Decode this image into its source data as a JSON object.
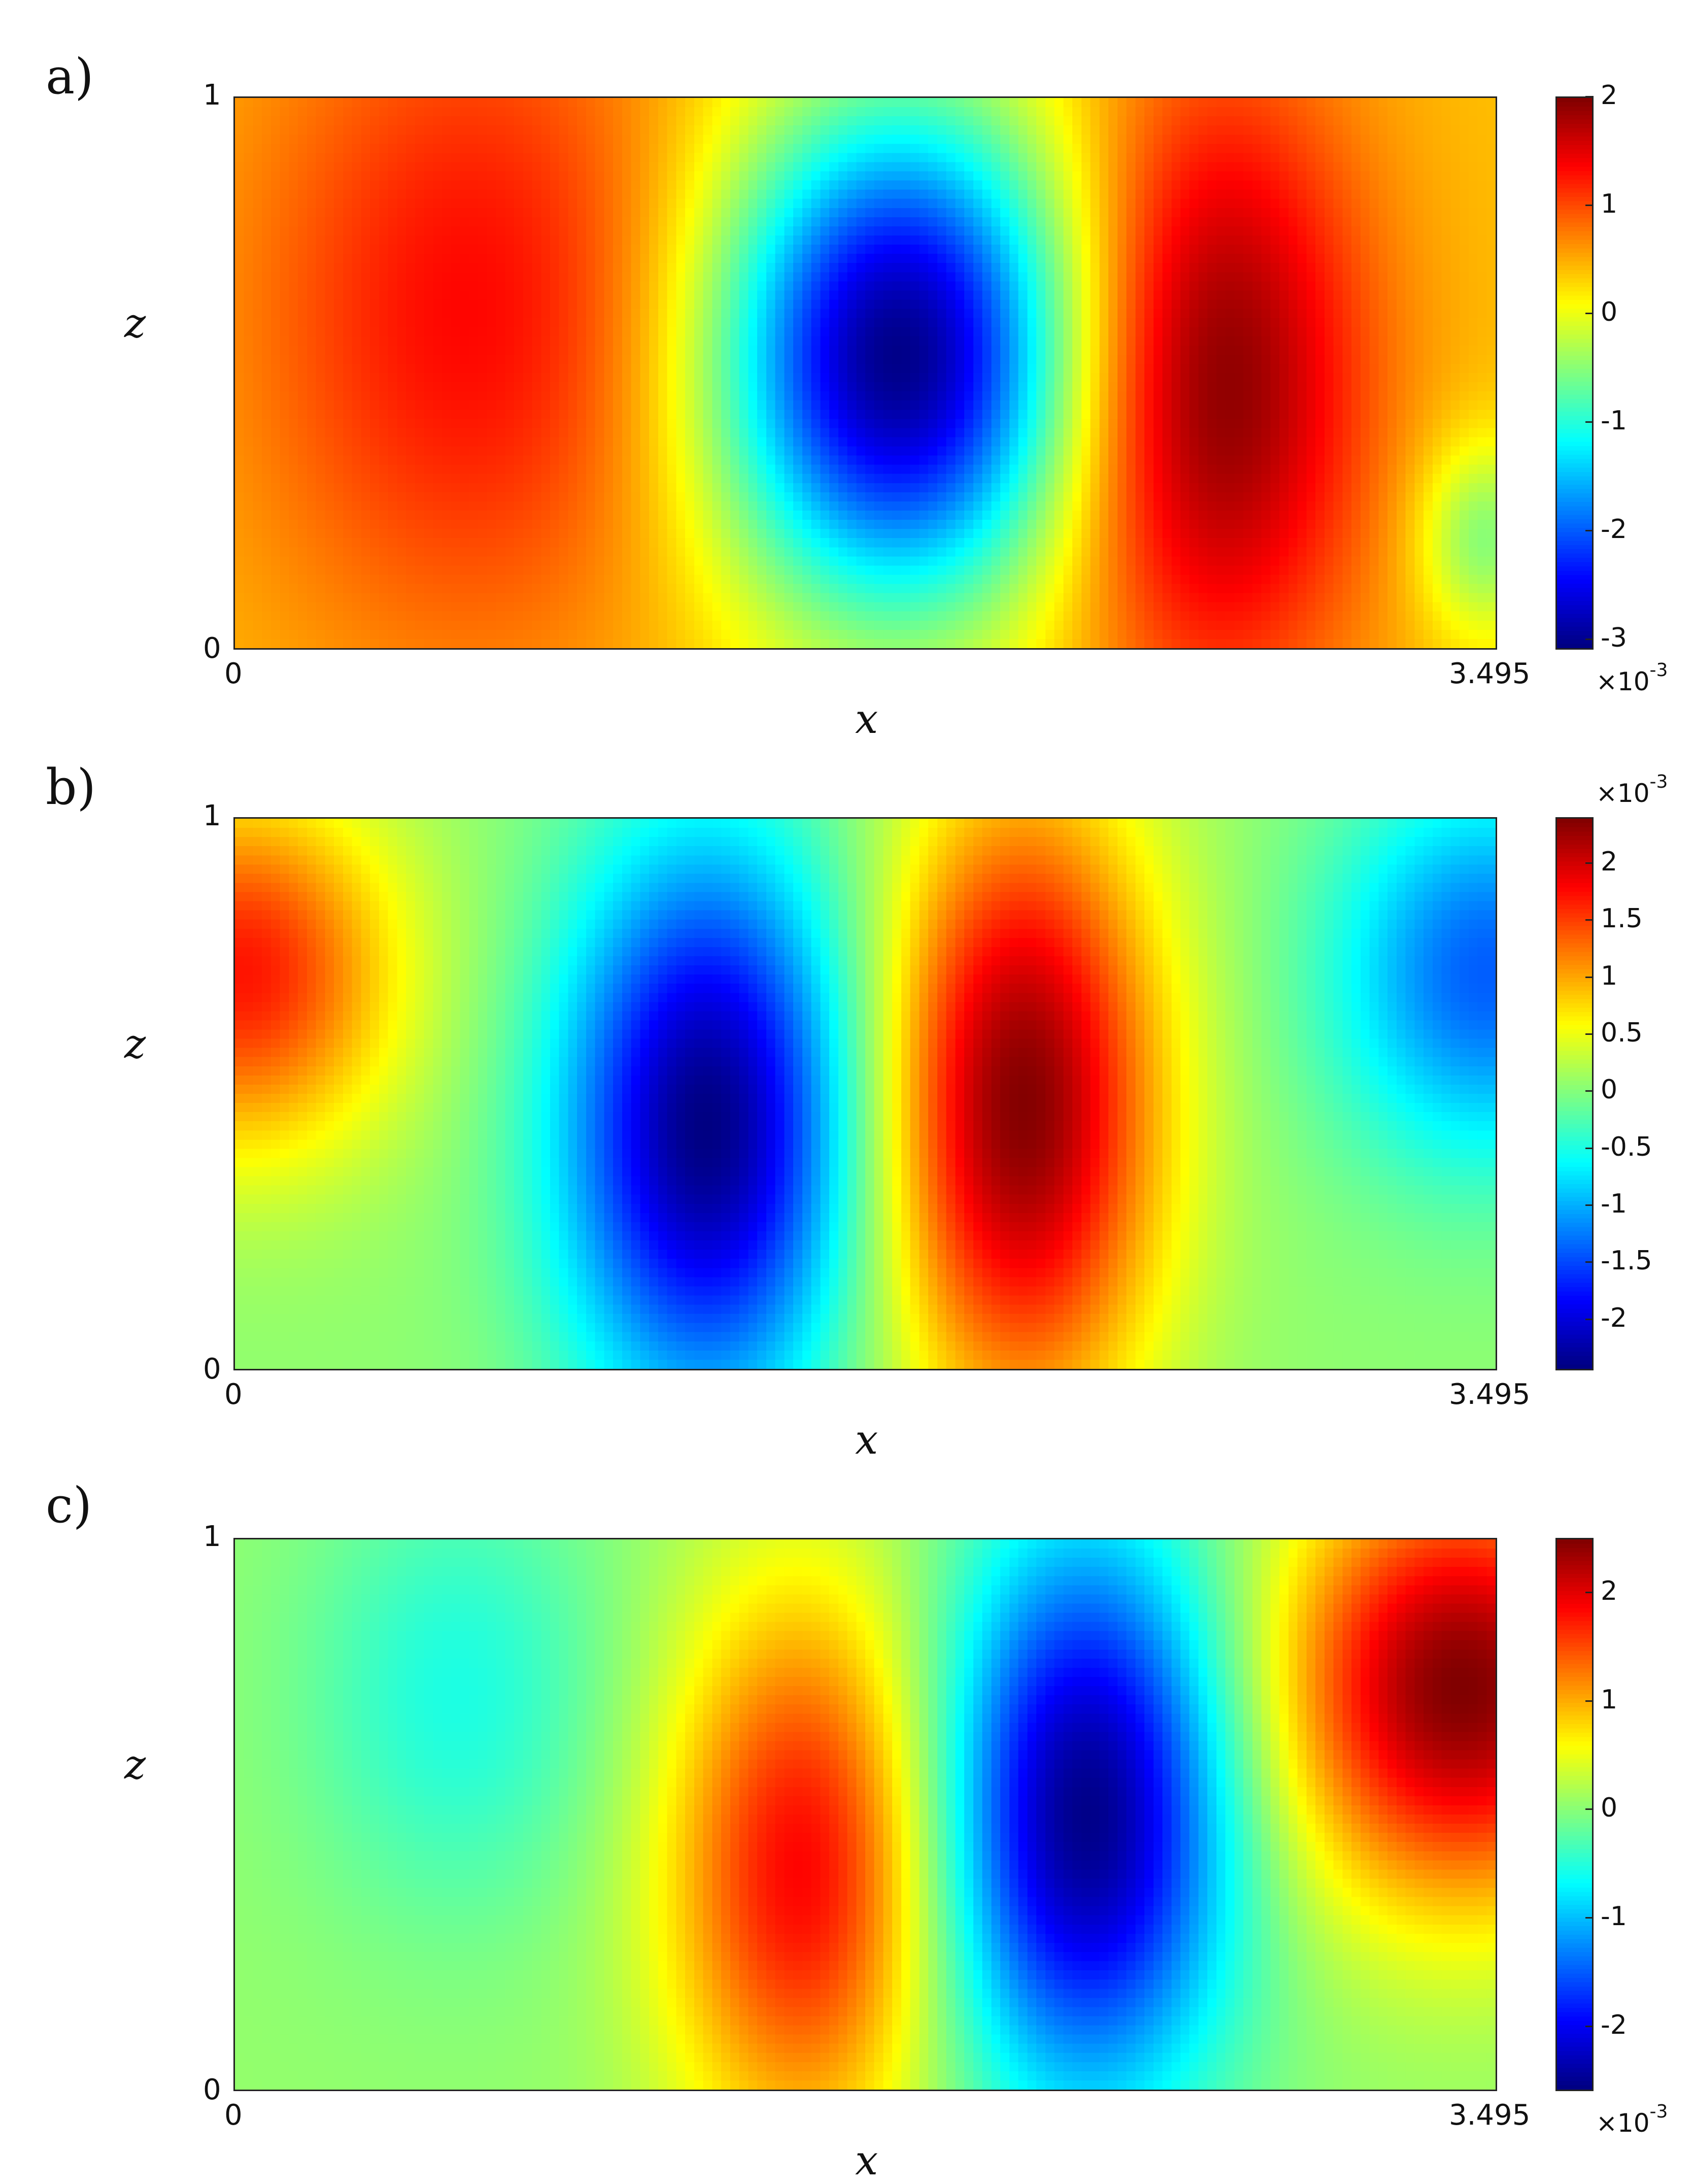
{
  "chart_data": [
    {
      "type": "heatmap",
      "panel_label": "a)",
      "xlabel": "x",
      "ylabel": "z",
      "xlim": [
        0,
        3.495
      ],
      "ylim": [
        0,
        1
      ],
      "x_ticks": [
        "0",
        "3.495"
      ],
      "y_ticks": [
        "0",
        "1"
      ],
      "colormap": "jet",
      "colorbar": {
        "range": [
          -3.1,
          2.0
        ],
        "ticks": [
          2,
          1,
          0,
          -1,
          -2,
          -3
        ],
        "tick_labels": [
          "2",
          "1",
          "0",
          "-1",
          "-2",
          "-3"
        ],
        "exponent_label": "×10",
        "exponent": "-3",
        "exponent_position": "bottom"
      },
      "background": 0.4,
      "extrema": [
        {
          "x": 0.66,
          "z": 0.61,
          "value": 1.35,
          "sx": 0.62,
          "sz": 0.62
        },
        {
          "x": 1.84,
          "z": 0.53,
          "value": -3.1,
          "sx": 0.5,
          "sz": 0.45
        },
        {
          "x": 2.71,
          "z": 0.48,
          "value": 2.05,
          "sx": 0.42,
          "sz": 0.55
        },
        {
          "x": 0.05,
          "z": 0.6,
          "value": 0.4,
          "sx": 0.3,
          "sz": 0.5
        },
        {
          "x": 3.46,
          "z": 0.2,
          "value": -0.55,
          "sx": 0.18,
          "sz": 0.18
        }
      ]
    },
    {
      "type": "heatmap",
      "panel_label": "b)",
      "xlabel": "x",
      "ylabel": "z",
      "xlim": [
        0,
        3.495
      ],
      "ylim": [
        0,
        1
      ],
      "x_ticks": [
        "0",
        "3.495"
      ],
      "y_ticks": [
        "0",
        "1"
      ],
      "colormap": "jet",
      "colorbar": {
        "range": [
          -2.45,
          2.4
        ],
        "ticks": [
          2,
          1.5,
          1,
          0.5,
          0,
          -0.5,
          -1,
          -1.5,
          -2
        ],
        "tick_labels": [
          "2",
          "1.5",
          "1",
          "0.5",
          "0",
          "-0.5",
          "-1",
          "-1.5",
          "-2"
        ],
        "exponent_label": "×10",
        "exponent": "-3",
        "exponent_position": "top"
      },
      "background": 0.05,
      "extrema": [
        {
          "x": 0.02,
          "z": 0.72,
          "value": 1.7,
          "sx": 0.42,
          "sz": 0.32
        },
        {
          "x": 1.31,
          "z": 0.44,
          "value": -2.45,
          "sx": 0.4,
          "sz": 0.5
        },
        {
          "x": 2.18,
          "z": 0.48,
          "value": 2.4,
          "sx": 0.38,
          "sz": 0.55
        },
        {
          "x": 3.47,
          "z": 0.72,
          "value": -1.4,
          "sx": 0.42,
          "sz": 0.34
        }
      ]
    },
    {
      "type": "heatmap",
      "panel_label": "c)",
      "xlabel": "x",
      "ylabel": "z",
      "xlim": [
        0,
        3.495
      ],
      "ylim": [
        0,
        1
      ],
      "x_ticks": [
        "0",
        "3.495"
      ],
      "y_ticks": [
        "0",
        "1"
      ],
      "colormap": "jet",
      "colorbar": {
        "range": [
          -2.6,
          2.5
        ],
        "ticks": [
          2,
          1,
          0,
          -1,
          -2
        ],
        "tick_labels": [
          "2",
          "1",
          "0",
          "-1",
          "-2"
        ],
        "exponent_label": "×10",
        "exponent": "-3",
        "exponent_position": "bottom"
      },
      "background": 0.05,
      "extrema": [
        {
          "x": 0.62,
          "z": 0.72,
          "value": -0.55,
          "sx": 0.42,
          "sz": 0.4
        },
        {
          "x": 1.58,
          "z": 0.4,
          "value": 1.9,
          "sx": 0.38,
          "sz": 0.5
        },
        {
          "x": 2.36,
          "z": 0.5,
          "value": -2.6,
          "sx": 0.4,
          "sz": 0.5
        },
        {
          "x": 3.4,
          "z": 0.73,
          "value": 2.5,
          "sx": 0.5,
          "sz": 0.38
        }
      ]
    }
  ]
}
